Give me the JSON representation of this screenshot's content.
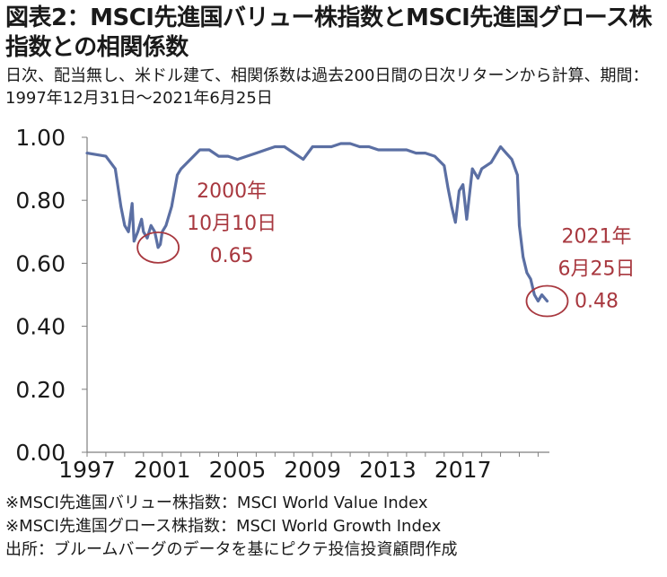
{
  "title": "図表2：MSCI先進国バリュー株指数とMSCI先進国グロース株指数との相関係数",
  "subtitle": "日次、配当無し、米ドル建て、相関係数は過去200日間の日次リターンから計算、期間：1997年12月31日～2021年6月25日",
  "notes": [
    "※MSCI先進国バリュー株指数：MSCI World Value Index",
    "※MSCI先進国グロース株指数：MSCI World Growth Index",
    "出所：ブルームバーグのデータを基にピクテ投信投資顧問作成"
  ],
  "colors": {
    "line": "#5b6fa3",
    "annotation": "#a8383f",
    "axis": "#7f7f7f",
    "text": "#1a1a1a"
  },
  "chart_data": {
    "type": "line",
    "title": "",
    "xlabel": "",
    "ylabel": "",
    "xlim": [
      1997,
      2021.6
    ],
    "ylim": [
      0,
      1
    ],
    "y_ticks": [
      "0.00",
      "0.20",
      "0.40",
      "0.60",
      "0.80",
      "1.00"
    ],
    "x_ticks": [
      "1997",
      "2001",
      "2005",
      "2009",
      "2013",
      "2017"
    ],
    "grid": false,
    "legend": "none",
    "x": [
      1997.0,
      1998.0,
      1998.5,
      1998.8,
      1999.0,
      1999.2,
      1999.4,
      1999.5,
      1999.7,
      1999.9,
      2000.0,
      2000.2,
      2000.4,
      2000.6,
      2000.78,
      2000.9,
      2001.0,
      2001.2,
      2001.5,
      2001.8,
      2002.0,
      2002.5,
      2003.0,
      2003.5,
      2004.0,
      2004.5,
      2005.0,
      2005.5,
      2006.0,
      2006.5,
      2007.0,
      2007.5,
      2008.0,
      2008.5,
      2009.0,
      2009.5,
      2010.0,
      2010.5,
      2011.0,
      2011.5,
      2012.0,
      2012.5,
      2013.0,
      2013.5,
      2014.0,
      2014.5,
      2015.0,
      2015.5,
      2016.0,
      2016.2,
      2016.4,
      2016.6,
      2016.8,
      2017.0,
      2017.2,
      2017.5,
      2017.8,
      2018.0,
      2018.5,
      2019.0,
      2019.3,
      2019.6,
      2019.9,
      2020.0,
      2020.2,
      2020.4,
      2020.6,
      2020.8,
      2021.0,
      2021.2,
      2021.48
    ],
    "y": [
      0.95,
      0.94,
      0.9,
      0.78,
      0.72,
      0.7,
      0.79,
      0.67,
      0.7,
      0.74,
      0.7,
      0.68,
      0.72,
      0.7,
      0.65,
      0.66,
      0.7,
      0.72,
      0.78,
      0.88,
      0.9,
      0.93,
      0.96,
      0.96,
      0.94,
      0.94,
      0.93,
      0.94,
      0.95,
      0.96,
      0.97,
      0.97,
      0.95,
      0.93,
      0.97,
      0.97,
      0.97,
      0.98,
      0.98,
      0.97,
      0.97,
      0.96,
      0.96,
      0.96,
      0.96,
      0.95,
      0.95,
      0.94,
      0.91,
      0.84,
      0.78,
      0.73,
      0.83,
      0.85,
      0.74,
      0.9,
      0.87,
      0.9,
      0.92,
      0.97,
      0.95,
      0.93,
      0.88,
      0.72,
      0.62,
      0.57,
      0.55,
      0.5,
      0.48,
      0.5,
      0.48
    ],
    "annotations": [
      {
        "lines": [
          "2000年",
          "10月10日",
          "0.65"
        ],
        "x": 2000.78,
        "y": 0.65
      },
      {
        "lines": [
          "2021年",
          "6月25日",
          "0.48"
        ],
        "x": 2021.48,
        "y": 0.48
      }
    ]
  }
}
